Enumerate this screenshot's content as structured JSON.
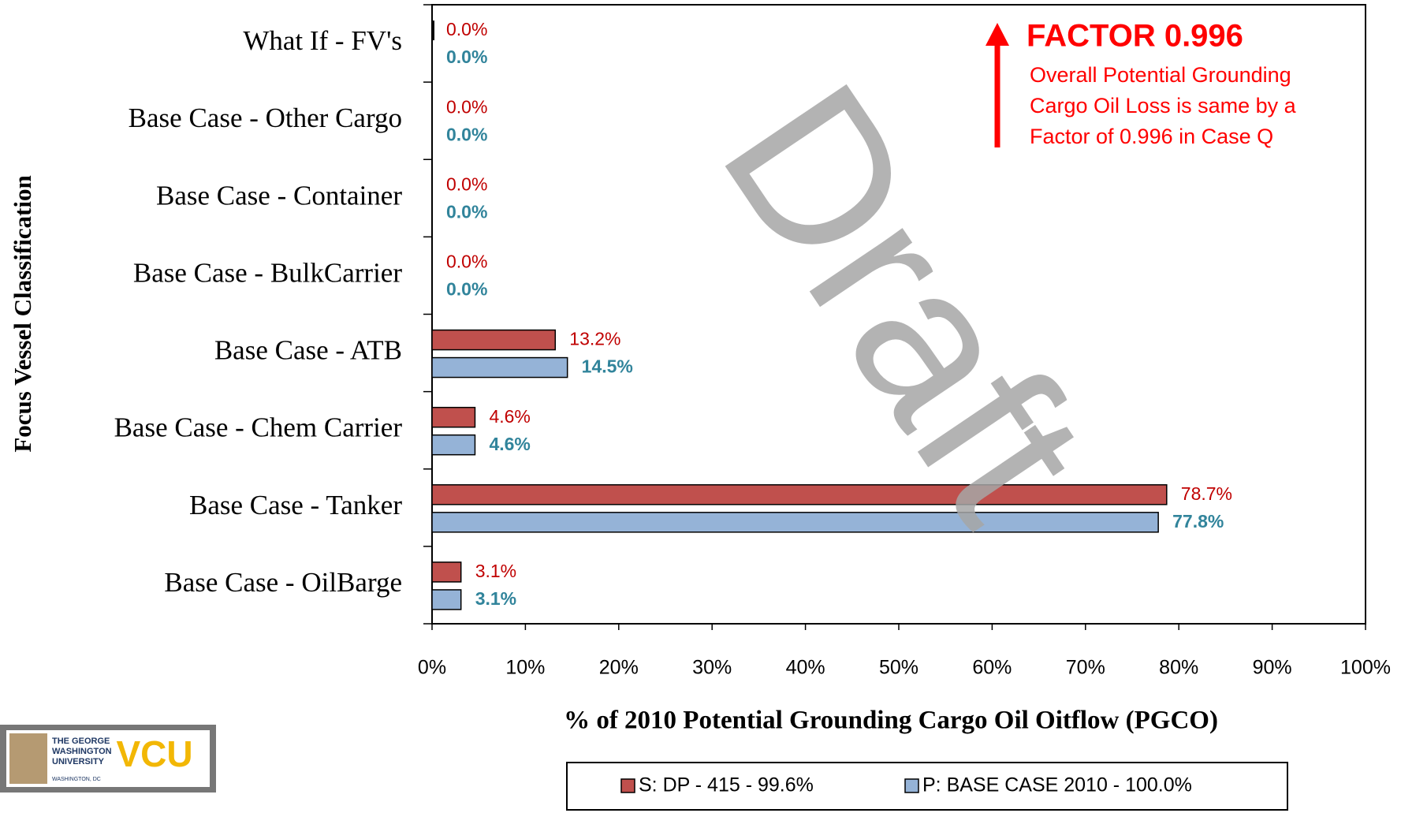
{
  "chart_data": {
    "type": "bar",
    "orientation": "horizontal",
    "x_label": "% of 2010 Potential Grounding Cargo Oil Oitflow (PGCO)",
    "y_label": "Focus Vessel Classification",
    "categories": [
      "What If - FV's",
      "Base Case - Other Cargo",
      "Base Case - Container",
      "Base Case - BulkCarrier",
      "Base  Case - ATB",
      "Base Case - Chem Carrier",
      "Base Case - Tanker",
      "Base Case - OilBarge"
    ],
    "series": [
      {
        "name": "S: DP - 415  - 99.6%",
        "color": "#c0504d",
        "values": [
          0,
          0,
          0,
          0,
          13.2,
          4.6,
          78.7,
          3.1
        ],
        "value_labels": [
          "0.0%",
          "0.0%",
          "0.0%",
          "0.0%",
          "13.2%",
          "4.6%",
          "78.7%",
          "3.1%"
        ],
        "label_color": "#c00000"
      },
      {
        "name": "P: BASE CASE 2010  - 100.0%",
        "color": "#95b3d7",
        "values": [
          0,
          0,
          0,
          0,
          14.5,
          4.6,
          77.8,
          3.1
        ],
        "value_labels": [
          "0.0%",
          "0.0%",
          "0.0%",
          "0.0%",
          "14.5%",
          "4.6%",
          "77.8%",
          "3.1%"
        ],
        "label_color": "#31849b"
      }
    ],
    "xlim": [
      0,
      100
    ],
    "xticks": [
      {
        "value": 0,
        "label": "0%"
      },
      {
        "value": 10,
        "label": "10%"
      },
      {
        "value": 20,
        "label": "20%"
      },
      {
        "value": 30,
        "label": "30%"
      },
      {
        "value": 40,
        "label": "40%"
      },
      {
        "value": 50,
        "label": "50%"
      },
      {
        "value": 60,
        "label": "60%"
      },
      {
        "value": 70,
        "label": "70%"
      },
      {
        "value": 80,
        "label": "80%"
      },
      {
        "value": 90,
        "label": "90%"
      },
      {
        "value": 100,
        "label": "100%"
      }
    ],
    "annotation": {
      "title": "FACTOR 0.996",
      "lines": [
        "Overall Potential Grounding",
        "Cargo Oil Loss is same by a",
        "Factor of 0.996 in Case Q"
      ]
    },
    "watermark": "Draft"
  },
  "logo": {
    "university": [
      "THE GEORGE",
      "WASHINGTON",
      "UNIVERSITY"
    ],
    "place": "WASHINGTON, DC",
    "partner": "VCU"
  }
}
